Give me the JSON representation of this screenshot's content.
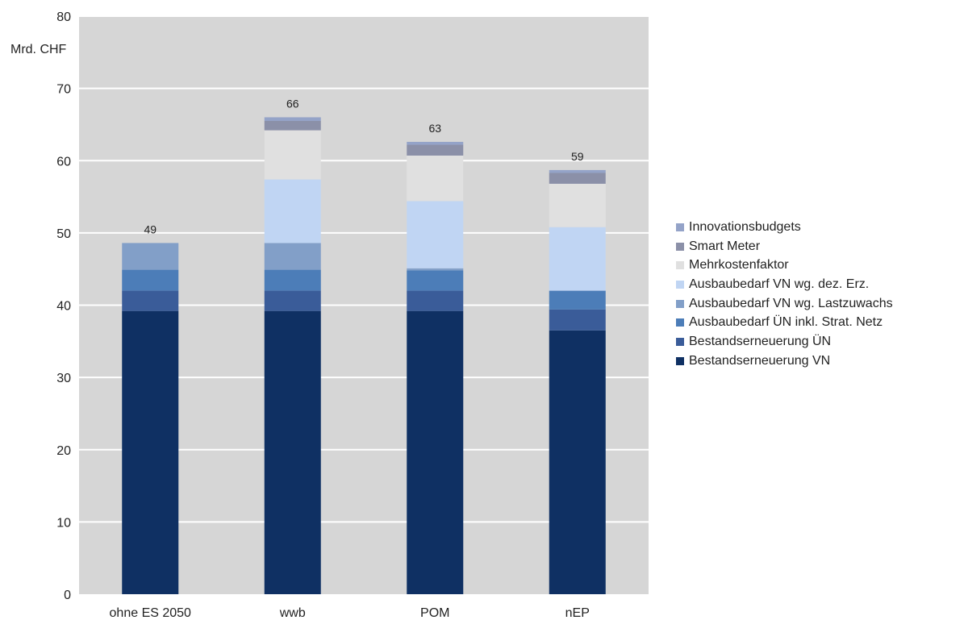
{
  "chart_data": {
    "type": "bar",
    "stacked": true,
    "unit_label": "Mrd. CHF",
    "categories": [
      "ohne ES 2050",
      "wwb",
      "POM",
      "nEP"
    ],
    "totals": [
      "49",
      "66",
      "63",
      "59"
    ],
    "ylim": [
      0,
      80
    ],
    "yticks": [
      "0",
      "10",
      "20",
      "30",
      "40",
      "50",
      "60",
      "70",
      "80"
    ],
    "grid": true,
    "legend_position": "right",
    "series": [
      {
        "name": "Bestandserneuerung VN",
        "color": "#0f3063",
        "values": [
          39.2,
          39.2,
          39.2,
          36.5
        ]
      },
      {
        "name": "Bestandserneuerung ÜN",
        "color": "#3a5c99",
        "values": [
          2.8,
          2.8,
          2.8,
          2.9
        ]
      },
      {
        "name": "Ausbaubedarf ÜN inkl. Strat. Netz",
        "color": "#4c7db8",
        "values": [
          2.9,
          2.9,
          2.8,
          2.6
        ]
      },
      {
        "name": "Ausbaubedarf VN wg. Lastzuwachs",
        "color": "#829fc8",
        "values": [
          3.7,
          3.7,
          0.3,
          0
        ]
      },
      {
        "name": "Ausbaubedarf VN wg. dez. Erz.",
        "color": "#c0d5f3",
        "values": [
          0,
          8.8,
          9.3,
          8.8
        ]
      },
      {
        "name": "Mehrkostenfaktor",
        "color": "#e0e0e0",
        "values": [
          0,
          6.8,
          6.3,
          6.0
        ]
      },
      {
        "name": "Smart Meter",
        "color": "#8b90a8",
        "values": [
          0,
          1.3,
          1.5,
          1.5
        ]
      },
      {
        "name": "Innovationsbudgets",
        "color": "#94a3c8",
        "values": [
          0,
          0.5,
          0.4,
          0.4
        ]
      }
    ]
  }
}
